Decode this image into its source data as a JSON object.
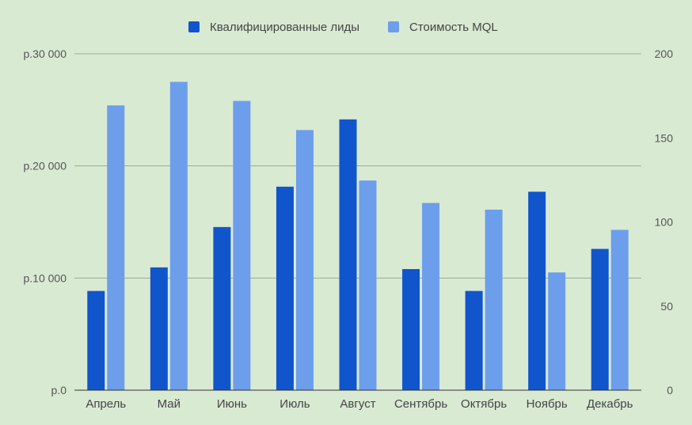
{
  "chart_data": {
    "type": "bar",
    "categories": [
      "Апрель",
      "Май",
      "Июнь",
      "Июль",
      "Август",
      "Сентябрь",
      "Октябрь",
      "Ноябрь",
      "Декабрь"
    ],
    "series": [
      {
        "name": "Квалифицированные лиды",
        "axis": "right",
        "color": "#1155cc",
        "values": [
          59,
          73,
          97,
          121,
          161,
          72,
          59,
          118,
          84
        ]
      },
      {
        "name": "Стоимость MQL",
        "axis": "left",
        "color": "#6d9eeb",
        "values": [
          25400,
          27500,
          25800,
          23200,
          18700,
          16700,
          16100,
          10500,
          14300
        ]
      }
    ],
    "y_left": {
      "ylim": [
        0,
        30000
      ],
      "ticks": [
        0,
        10000,
        20000,
        30000
      ],
      "tick_labels": [
        "р.0",
        "р.10 000",
        "р.20 000",
        "р.30 000"
      ]
    },
    "y_right": {
      "ylim": [
        0,
        200
      ],
      "ticks": [
        0,
        50,
        100,
        150,
        200
      ],
      "tick_labels": [
        "0",
        "50",
        "100",
        "150",
        "200"
      ]
    },
    "title": "",
    "xlabel": "",
    "ylabel": "",
    "grid": true,
    "legend_position": "top-center",
    "colors": {
      "background": "#d9ead3",
      "gridline": "#9aaa94",
      "baseline": "#333333"
    }
  }
}
